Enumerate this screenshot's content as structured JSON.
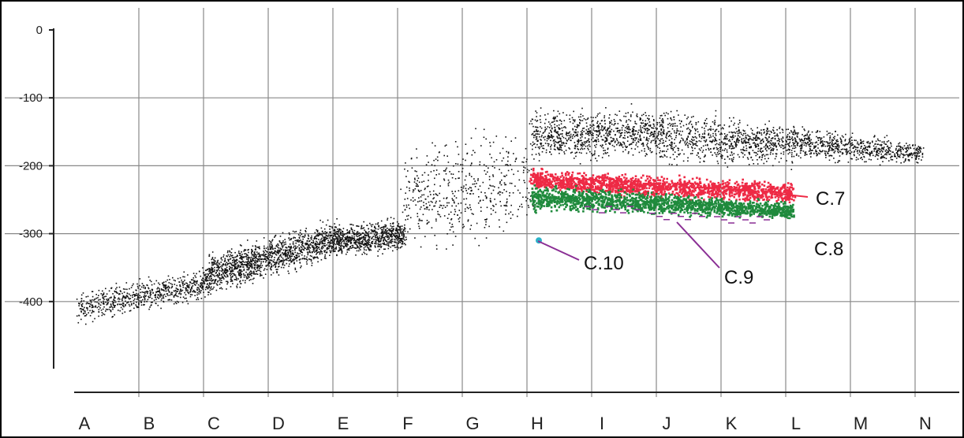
{
  "chart_data": {
    "type": "scatter",
    "title": "",
    "xlabel": "",
    "ylabel": "",
    "categories": [
      "A",
      "B",
      "C",
      "D",
      "E",
      "F",
      "G",
      "H",
      "I",
      "J",
      "K",
      "L",
      "M",
      "N"
    ],
    "y_ticks": [
      0,
      -100,
      -200,
      -300,
      -400
    ],
    "y_tick_labels": [
      "0",
      "-100",
      "-200",
      "-300",
      "-400"
    ],
    "ylim": [
      -500,
      0
    ],
    "grid": true,
    "colors": {
      "background_points": "#111111",
      "C.7": "#ee2a45",
      "C.8": "#1f8a3c",
      "C.9": "#8a2e94",
      "C.10": "#2bb3c9",
      "grid": "#888888"
    },
    "clouds": [
      {
        "series": "background",
        "x_range": [
          "A",
          "C"
        ],
        "y_start": [
          -440,
          -380
        ],
        "y_end": [
          -400,
          -340
        ],
        "density": 700
      },
      {
        "series": "background",
        "x_range": [
          "C",
          "E"
        ],
        "y_start": [
          -400,
          -320
        ],
        "y_end": [
          -340,
          -270
        ],
        "density": 1400
      },
      {
        "series": "background",
        "x_range": [
          "E",
          "F"
        ],
        "y_start": [
          -340,
          -280
        ],
        "y_end": [
          -330,
          -270
        ],
        "density": 700
      },
      {
        "series": "background",
        "x_range": [
          "F",
          "H"
        ],
        "y_start": [
          -340,
          -160
        ],
        "y_end": [
          -340,
          -100
        ],
        "density": 500
      },
      {
        "series": "background",
        "x_range": [
          "H",
          "J"
        ],
        "y_start": [
          -200,
          -110
        ],
        "y_end": [
          -200,
          -100
        ],
        "density": 900
      },
      {
        "series": "background",
        "x_range": [
          "J",
          "L"
        ],
        "y_start": [
          -210,
          -100
        ],
        "y_end": [
          -210,
          -130
        ],
        "density": 800
      },
      {
        "series": "background",
        "x_range": [
          "L",
          "N"
        ],
        "y_start": [
          -200,
          -130
        ],
        "y_end": [
          -200,
          -160
        ],
        "density": 700
      },
      {
        "series": "C.7",
        "x_range": [
          "H",
          "L"
        ],
        "y_start": [
          -240,
          -200
        ],
        "y_end": [
          -260,
          -220
        ],
        "density": 1600
      },
      {
        "series": "C.8",
        "x_range": [
          "H",
          "L"
        ],
        "y_start": [
          -270,
          -220
        ],
        "y_end": [
          -280,
          -250
        ],
        "density": 1600
      }
    ],
    "series_points": [
      {
        "name": "C.9",
        "x": [
          "I",
          "J",
          "K"
        ],
        "y": [
          -260,
          -270,
          -275
        ]
      },
      {
        "name": "C.10",
        "x": [
          "H"
        ],
        "y": [
          -310
        ]
      }
    ],
    "annotations": [
      {
        "text": "C.7",
        "target_series": "C.7"
      },
      {
        "text": "C.8",
        "target_series": "C.8"
      },
      {
        "text": "C.9",
        "target_series": "C.9"
      },
      {
        "text": "C.10",
        "target_series": "C.10"
      }
    ]
  }
}
